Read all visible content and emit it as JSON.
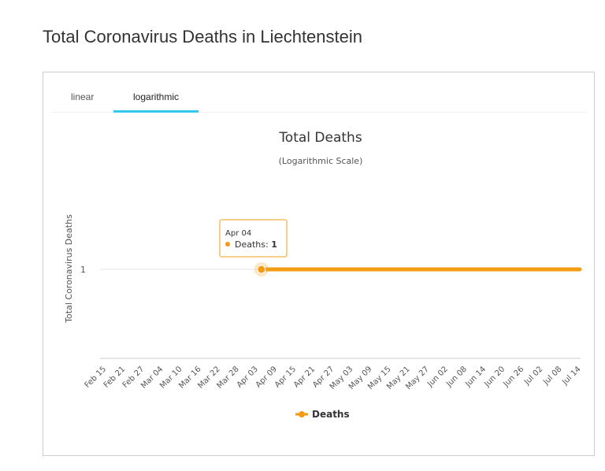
{
  "page": {
    "title": "Total Coronavirus Deaths in Liechtenstein"
  },
  "tabs": [
    {
      "label": "linear",
      "active": false
    },
    {
      "label": "logarithmic",
      "active": true
    }
  ],
  "colors": {
    "series": "#f39c12",
    "tab_active": "#34c8ef",
    "grid": "#e6e6e6"
  },
  "chart_data": {
    "type": "line",
    "title": "Total Deaths",
    "subtitle": "(Logarithmic Scale)",
    "ylabel": "Total Coronavirus Deaths",
    "xlabel": "",
    "yscale": "log",
    "y_ticks": [
      "1"
    ],
    "legend_position": "bottom-center",
    "x_tick_labels": [
      "Feb 15",
      "Feb 21",
      "Feb 27",
      "Mar 04",
      "Mar 10",
      "Mar 16",
      "Mar 22",
      "Mar 28",
      "Apr 03",
      "Apr 09",
      "Apr 15",
      "Apr 21",
      "Apr 27",
      "May 03",
      "May 09",
      "May 15",
      "May 21",
      "May 27",
      "Jun 02",
      "Jun 08",
      "Jun 14",
      "Jun 20",
      "Jun 26",
      "Jul 02",
      "Jul 08",
      "Jul 14"
    ],
    "x_range": [
      "Feb 15",
      "Jul 18"
    ],
    "series": [
      {
        "name": "Deaths",
        "start": "Apr 04",
        "end": "Jul 18",
        "value": 1
      }
    ],
    "tooltip": {
      "date": "Apr 04",
      "series": "Deaths",
      "value": "1"
    }
  }
}
